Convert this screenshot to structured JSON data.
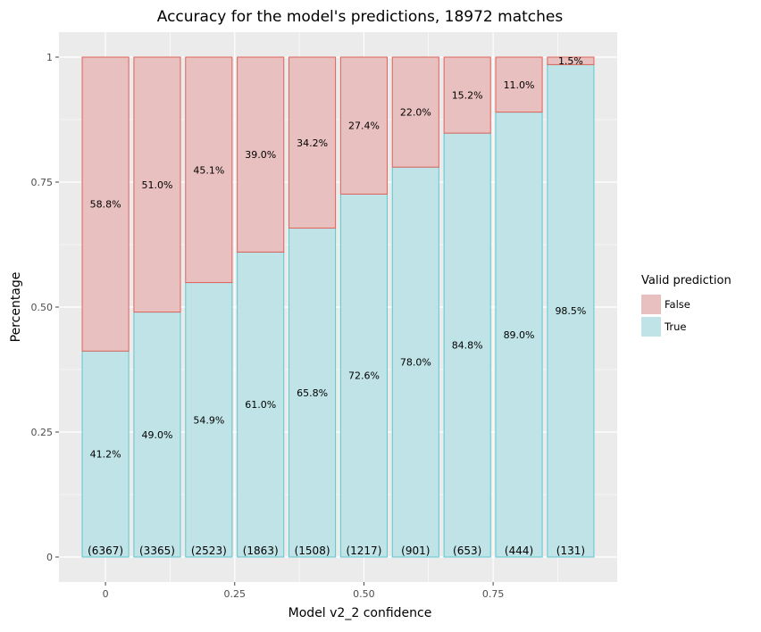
{
  "chart_data": {
    "type": "bar",
    "stacked": true,
    "title": "Accuracy for the model's predictions, 18972 matches",
    "xlabel": "Model v2_2 confidence",
    "ylabel": "Percentage",
    "x": [
      0,
      0.1,
      0.2,
      0.3,
      0.4,
      0.5,
      0.6,
      0.7,
      0.8,
      0.9
    ],
    "xlim": [
      -0.09,
      0.99
    ],
    "ylim": [
      -0.05,
      1.05
    ],
    "x_ticks": [
      {
        "value": 0,
        "label": "0"
      },
      {
        "value": 0.25,
        "label": "0.25"
      },
      {
        "value": 0.5,
        "label": "0.50"
      },
      {
        "value": 0.75,
        "label": "0.75"
      }
    ],
    "y_ticks": [
      {
        "value": 0,
        "label": "0"
      },
      {
        "value": 0.25,
        "label": "0.25"
      },
      {
        "value": 0.5,
        "label": "0.50"
      },
      {
        "value": 0.75,
        "label": "0.75"
      },
      {
        "value": 1,
        "label": "1"
      }
    ],
    "series": [
      {
        "name": "True",
        "fill": "#bfe3e6",
        "stroke": "#5cc8d0",
        "values": [
          0.412,
          0.49,
          0.549,
          0.61,
          0.658,
          0.726,
          0.78,
          0.848,
          0.89,
          0.985
        ],
        "labels": [
          "41.2%",
          "49.0%",
          "54.9%",
          "61.0%",
          "65.8%",
          "72.6%",
          "78.0%",
          "84.8%",
          "89.0%",
          "98.5%"
        ]
      },
      {
        "name": "False",
        "fill": "#e8c0bf",
        "stroke": "#e0625a",
        "values": [
          0.588,
          0.51,
          0.451,
          0.39,
          0.342,
          0.274,
          0.22,
          0.152,
          0.11,
          0.015
        ],
        "labels": [
          "58.8%",
          "51.0%",
          "45.1%",
          "39.0%",
          "34.2%",
          "27.4%",
          "22.0%",
          "15.2%",
          "11.0%",
          "1.5%"
        ]
      }
    ],
    "counts": [
      "(6367)",
      "(3365)",
      "(2523)",
      "(1863)",
      "(1508)",
      "(1217)",
      "(901)",
      "(653)",
      "(444)",
      "(131)"
    ],
    "legend": {
      "title": "Valid prediction",
      "position": "right",
      "entries": [
        "False",
        "True"
      ]
    },
    "grid": true,
    "panel_background": "#ebebeb"
  }
}
